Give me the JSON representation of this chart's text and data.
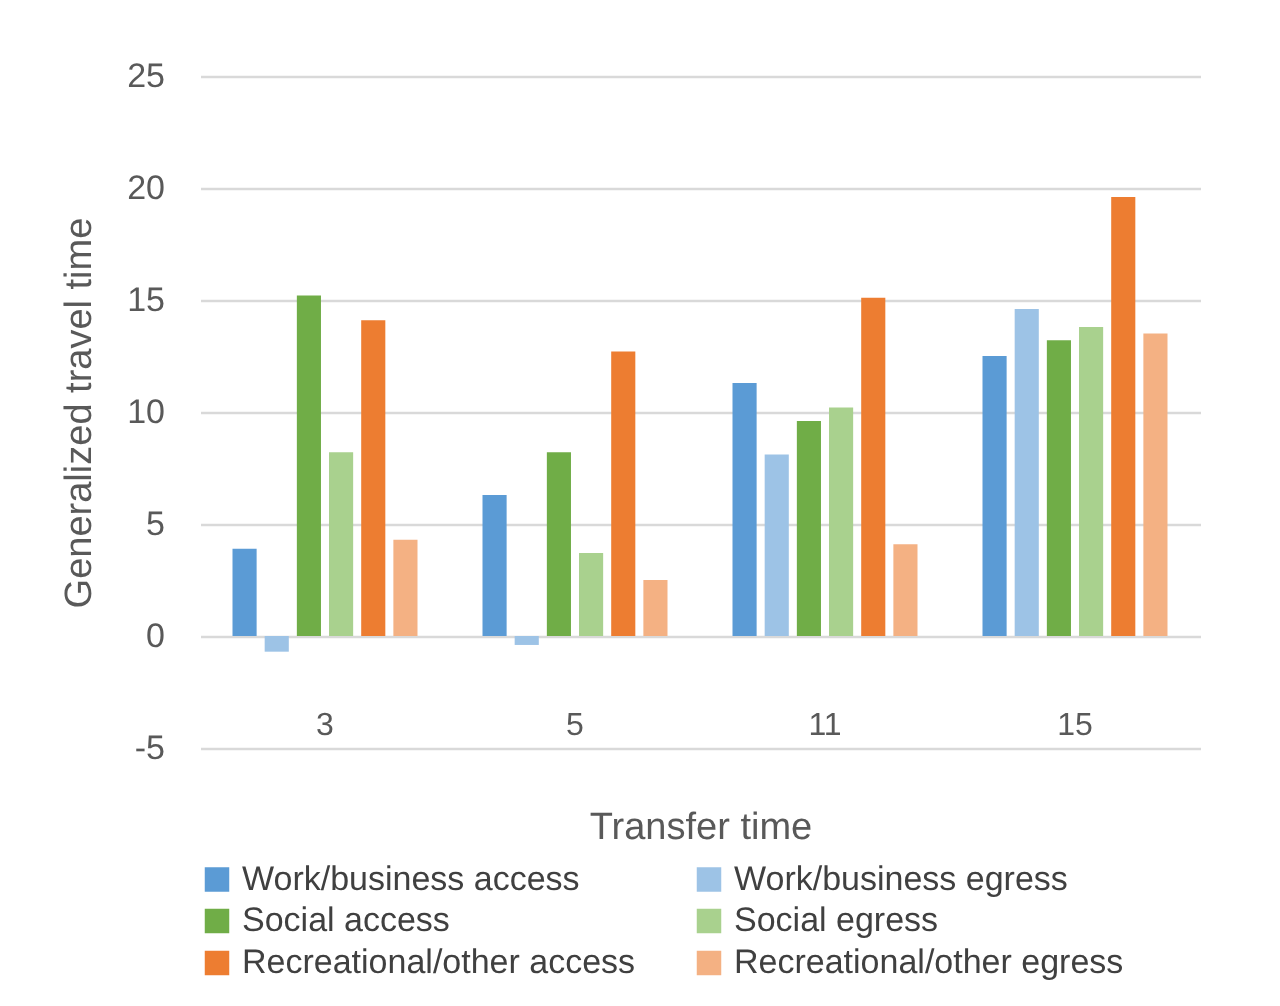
{
  "chart_data": {
    "type": "bar",
    "xlabel": "Transfer time",
    "ylabel": "Generalized travel time",
    "categories": [
      "3",
      "5",
      "11",
      "15"
    ],
    "series": [
      {
        "name": "Work/business access",
        "color": "#5b9bd5",
        "values": [
          3.9,
          6.3,
          11.3,
          12.5
        ]
      },
      {
        "name": "Work/business egress",
        "color": "#9dc3e6",
        "values": [
          -0.7,
          -0.4,
          8.1,
          14.6
        ]
      },
      {
        "name": "Social access",
        "color": "#70ad47",
        "values": [
          15.2,
          8.2,
          9.6,
          13.2
        ]
      },
      {
        "name": "Social egress",
        "color": "#a9d18e",
        "values": [
          8.2,
          3.7,
          10.2,
          13.8
        ]
      },
      {
        "name": "Recreational/other access",
        "color": "#ed7d31",
        "values": [
          14.1,
          12.7,
          15.1,
          19.6
        ]
      },
      {
        "name": "Recreational/other egress",
        "color": "#f4b183",
        "values": [
          4.3,
          2.5,
          4.1,
          13.5
        ]
      }
    ],
    "ylim": [
      -5,
      25
    ],
    "yticks": [
      -5,
      0,
      5,
      10,
      15,
      20,
      25
    ],
    "grid": "y",
    "legend": "bottom"
  }
}
